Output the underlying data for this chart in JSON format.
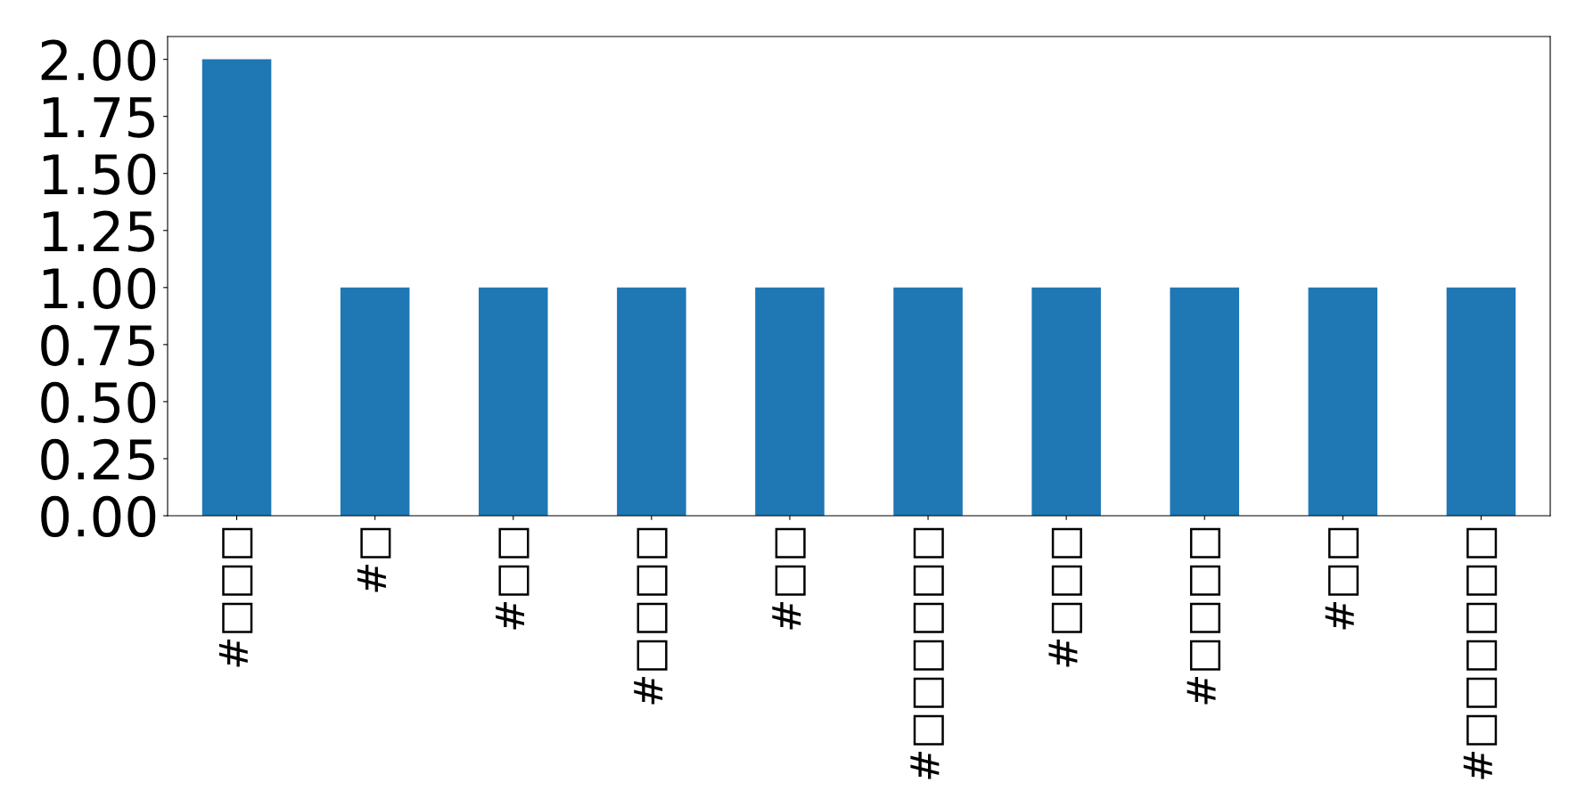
{
  "chart_data": {
    "type": "bar",
    "categories": [
      "#□□□",
      "#□",
      "#□□",
      "#□□□□",
      "#□□",
      "#□□□□□□",
      "#□□□",
      "#□□□□",
      "#□□",
      "#□□□□□□"
    ],
    "values": [
      2,
      1,
      1,
      1,
      1,
      1,
      1,
      1,
      1,
      1
    ],
    "color": "#1f77b4",
    "ylim": [
      0,
      2.1
    ],
    "yticks": [
      {
        "value": 0,
        "label": "0.00"
      },
      {
        "value": 0.25,
        "label": "0.25"
      },
      {
        "value": 0.5,
        "label": "0.50"
      },
      {
        "value": 0.75,
        "label": "0.75"
      },
      {
        "value": 1,
        "label": "1.00"
      },
      {
        "value": 1.25,
        "label": "1.25"
      },
      {
        "value": 1.5,
        "label": "1.50"
      },
      {
        "value": 1.75,
        "label": "1.75"
      },
      {
        "value": 2,
        "label": "2.00"
      }
    ],
    "grid": false
  }
}
